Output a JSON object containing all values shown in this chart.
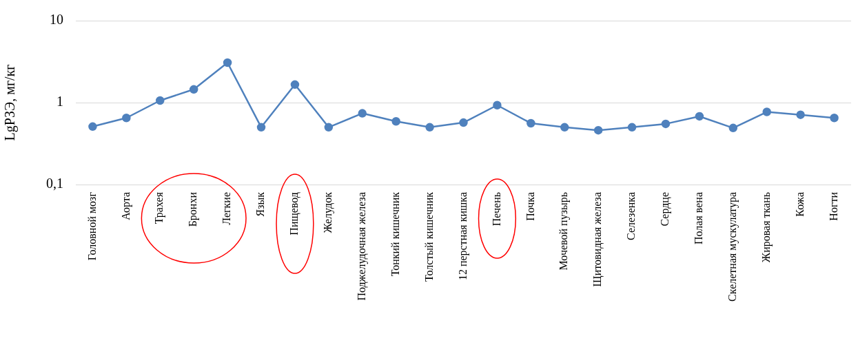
{
  "chart_data": {
    "type": "line",
    "ylabel": "LgРЗЭ, мг/кг",
    "categories": [
      "Головной мозг",
      "Аорта",
      "Трахея",
      "Бронхи",
      "Легкие",
      "Язык",
      "Пищевод",
      "Желудок",
      "Поджелудочная железа",
      "Тонкий кишечник",
      "Толстый кишечник",
      "12 перстная кишка",
      "Печень",
      "Почка",
      "Мочевой пузырь",
      "Щитовидная железа",
      "Селезенка",
      "Сердце",
      "Полая вена",
      "Скелетная мускулатура",
      "Жировая ткань",
      "Кожа",
      "Ногти"
    ],
    "series": [
      {
        "color": "#4f81bd",
        "values": [
          0.51,
          0.65,
          1.06,
          1.45,
          3.07,
          0.5,
          1.66,
          0.5,
          0.74,
          0.59,
          0.5,
          0.57,
          0.93,
          0.56,
          0.5,
          0.46,
          0.5,
          0.55,
          0.68,
          0.49,
          0.77,
          0.71,
          0.65
        ]
      }
    ],
    "log": "y",
    "ylim": [
      0.1,
      10
    ],
    "yticks": [
      {
        "value": 0.1,
        "label": "0,1"
      },
      1,
      10
    ],
    "grid": "y",
    "legend": false,
    "marker": "circle",
    "line_style": "solid"
  }
}
